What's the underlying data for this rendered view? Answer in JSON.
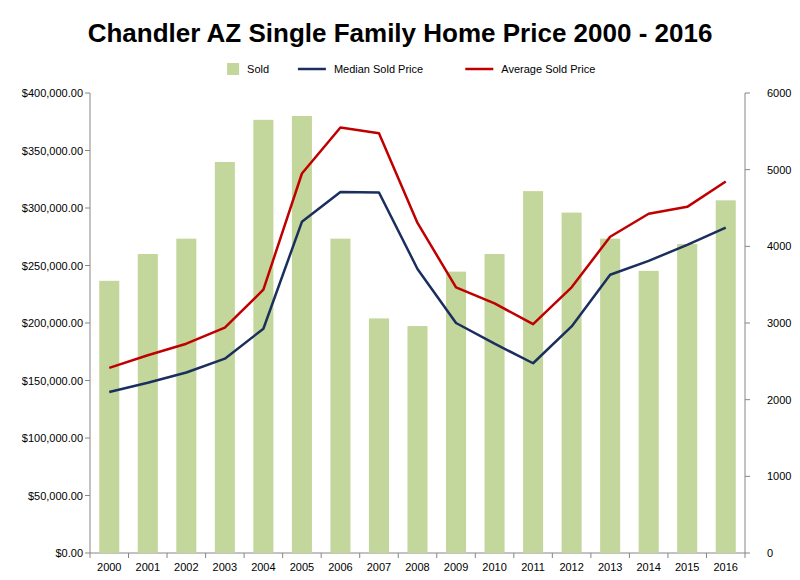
{
  "chart_data": {
    "type": "bar",
    "title": "Chandler AZ Single Family Home Price 2000 - 2016",
    "categories": [
      "2000",
      "2001",
      "2002",
      "2003",
      "2004",
      "2005",
      "2006",
      "2007",
      "2008",
      "2009",
      "2010",
      "2011",
      "2012",
      "2013",
      "2014",
      "2015",
      "2016"
    ],
    "series": [
      {
        "name": "Sold",
        "type": "bar",
        "axis": "y2",
        "color": "#c3d69b",
        "values": [
          3550,
          3900,
          4100,
          5100,
          5650,
          5700,
          4100,
          3060,
          2960,
          3670,
          3900,
          4720,
          4440,
          4100,
          3680,
          4030,
          4600
        ]
      },
      {
        "name": "Median Sold Price",
        "type": "line",
        "color": "#1b2f5e",
        "values": [
          140000,
          148000,
          157000,
          169000,
          195000,
          288000,
          314000,
          313500,
          247000,
          200000,
          182000,
          165000,
          197000,
          242000,
          254000,
          268000,
          283000
        ]
      },
      {
        "name": "Average Sold Price",
        "type": "line",
        "color": "#c00000",
        "values": [
          161000,
          172000,
          182000,
          196000,
          229000,
          330000,
          370000,
          365000,
          287000,
          231000,
          217000,
          199000,
          231000,
          275000,
          295000,
          301000,
          323000
        ]
      }
    ],
    "ylim": [
      0,
      400000
    ],
    "yticks": [
      {
        "value": 0,
        "label": "$0.00"
      },
      {
        "value": 50000,
        "label": "$50,000.00"
      },
      {
        "value": 100000,
        "label": "$100,000.00"
      },
      {
        "value": 150000,
        "label": "$150,000.00"
      },
      {
        "value": 200000,
        "label": "$200,000.00"
      },
      {
        "value": 250000,
        "label": "$250,000.00"
      },
      {
        "value": 300000,
        "label": "$300,000.00"
      },
      {
        "value": 350000,
        "label": "$350,000.00"
      },
      {
        "value": 400000,
        "label": "$400,000.00"
      }
    ],
    "y2lim": [
      0,
      6000
    ],
    "y2ticks": [
      0,
      1000,
      2000,
      3000,
      4000,
      5000,
      6000
    ],
    "grid": false,
    "legend": "top"
  }
}
